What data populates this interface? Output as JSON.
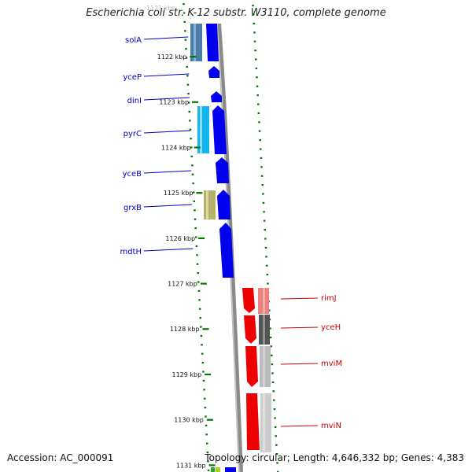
{
  "header": {
    "title": "Escherichia coli str. K-12 substr. W3110, complete genome"
  },
  "footer": {
    "accession": "Accession: AC_000091",
    "topology": "Topology: circular; Length: 4,646,332 bp; Genes: 4,383"
  },
  "colors": {
    "forward_strand": "#0000ff",
    "reverse_strand": "#ff0000",
    "label_forward": "#0000cc",
    "label_reverse": "#cc0000",
    "ticks": "#007700",
    "backbone": "#808080"
  },
  "ruler": {
    "ticks": [
      {
        "label": "1122 kbp"
      },
      {
        "label": "1123 kbp"
      },
      {
        "label": "1124 kbp"
      },
      {
        "label": "1125 kbp"
      },
      {
        "label": "1126 kbp"
      },
      {
        "label": "1127 kbp"
      },
      {
        "label": "1128 kbp"
      },
      {
        "label": "1129 kbp"
      },
      {
        "label": "1130 kbp"
      },
      {
        "label": "1131 kbp"
      }
    ]
  },
  "genes_forward": [
    {
      "name": "solA"
    },
    {
      "name": "yceP"
    },
    {
      "name": "dinI"
    },
    {
      "name": "pyrC"
    },
    {
      "name": "yceB"
    },
    {
      "name": "grxB"
    },
    {
      "name": "mdtH"
    }
  ],
  "genes_reverse": [
    {
      "name": "rimJ"
    },
    {
      "name": "yceH"
    },
    {
      "name": "mviM"
    },
    {
      "name": "mviN"
    }
  ]
}
